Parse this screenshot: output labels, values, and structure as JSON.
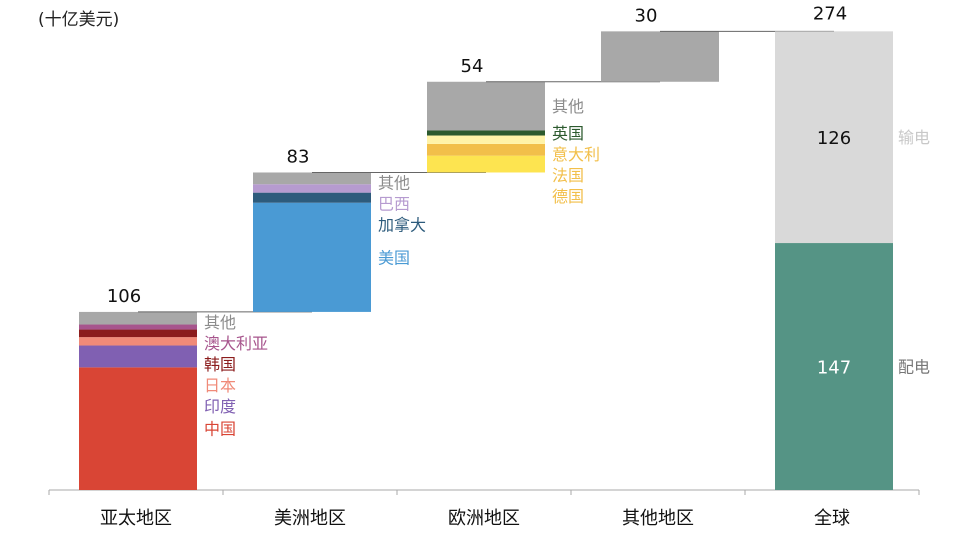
{
  "unit_label": "(十亿美元)",
  "chart_data": {
    "type": "waterfall",
    "unit": "(十亿美元)",
    "categories": [
      "亚太地区",
      "美洲地区",
      "欧洲地区",
      "其他地区",
      "全球"
    ],
    "regions": [
      {
        "name": "亚太地区",
        "total": 106,
        "segments": [
          {
            "label": "中国",
            "value": 73,
            "color": "#d94535"
          },
          {
            "label": "印度",
            "value": 13,
            "color": "#8060b2"
          },
          {
            "label": "日本",
            "value": 5,
            "color": "#f08a78"
          },
          {
            "label": "韩国",
            "value": 4.5,
            "color": "#8b1c1c"
          },
          {
            "label": "澳大利亚",
            "value": 3,
            "color": "#a7558d"
          },
          {
            "label": "其他",
            "value": 7.5,
            "color": "#a8a8a8"
          }
        ]
      },
      {
        "name": "美洲地区",
        "total": 83,
        "segments": [
          {
            "label": "美国",
            "value": 65,
            "color": "#4a9ad4"
          },
          {
            "label": "加拿大",
            "value": 6,
            "color": "#2d5b7c"
          },
          {
            "label": "巴西",
            "value": 5,
            "color": "#b69bd0"
          },
          {
            "label": "其他",
            "value": 7,
            "color": "#a8a8a8"
          }
        ]
      },
      {
        "name": "欧洲地区",
        "total": 54,
        "segments": [
          {
            "label": "德国",
            "value": 10,
            "color": "#fde450"
          },
          {
            "label": "法国",
            "value": 7,
            "color": "#f2bf4a"
          },
          {
            "label": "意大利",
            "value": 5,
            "color": "#fff3a8"
          },
          {
            "label": "英国",
            "value": 3,
            "color": "#2c5a2e"
          },
          {
            "label": "其他",
            "value": 29,
            "color": "#a8a8a8"
          }
        ]
      },
      {
        "name": "其他地区",
        "total": 30,
        "segments": [
          {
            "label": "",
            "value": 30,
            "color": "#a8a8a8"
          }
        ]
      }
    ],
    "total_bar": {
      "name": "全球",
      "total": 274,
      "segments": [
        {
          "label": "配电",
          "value": 147,
          "color": "#559485",
          "value_label": "147",
          "value_color": "#ffffff"
        },
        {
          "label": "输电",
          "value": 126,
          "color": "#d9d9d9",
          "value_label": "126",
          "value_color": "#111111"
        }
      ]
    },
    "label_colors": {
      "中国": "#d94535",
      "印度": "#8060b2",
      "日本": "#f08a78",
      "韩国": "#8b1c1c",
      "澳大利亚": "#a7558d",
      "其他": "#8c8c8c",
      "美国": "#4a9ad4",
      "加拿大": "#2d5b7c",
      "巴西": "#b69bd0",
      "德国": "#f2bf4a",
      "法国": "#f2bf4a",
      "意大利": "#f2bf4a",
      "英国": "#2c5a2e",
      "配电": "#777777",
      "输电": "#c8c8c8"
    }
  }
}
